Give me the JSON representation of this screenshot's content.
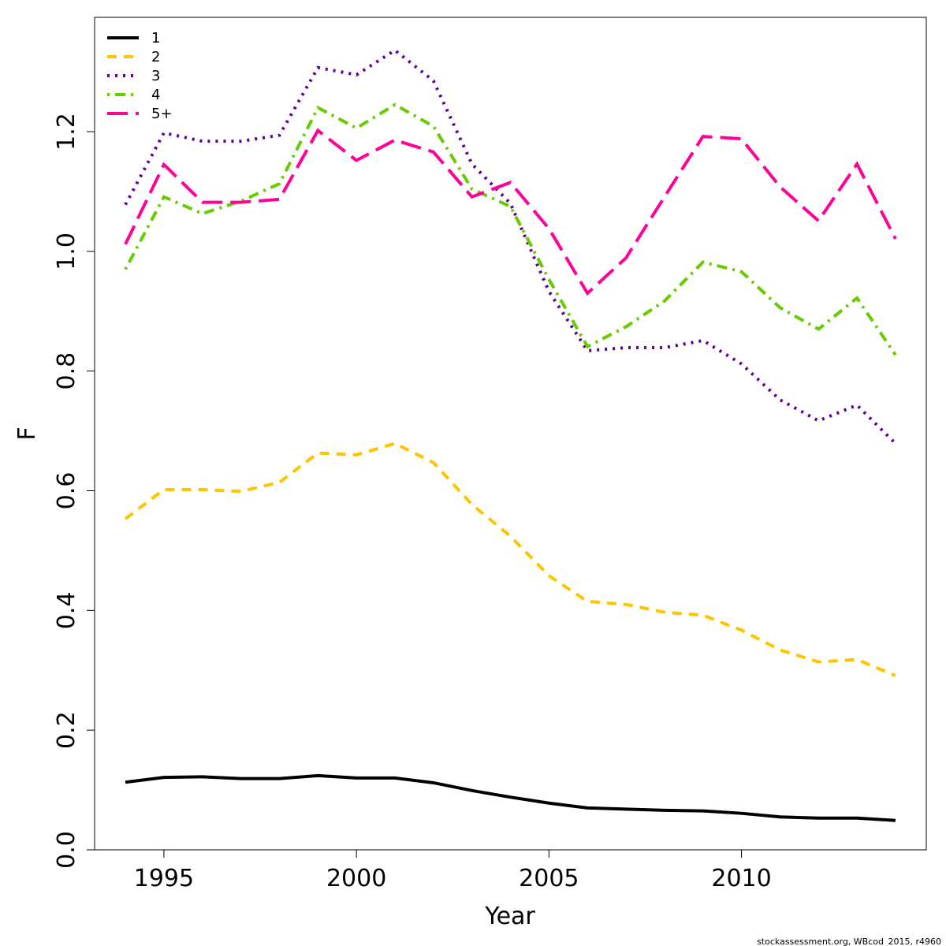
{
  "chart_data": {
    "type": "line",
    "xlabel": "Year",
    "ylabel": "F",
    "footnote": "stockassessment.org, WBcod_2015, r4960",
    "x": [
      1994,
      1995,
      1996,
      1997,
      1998,
      1999,
      2000,
      2001,
      2002,
      2003,
      2004,
      2005,
      2006,
      2007,
      2008,
      2009,
      2010,
      2011,
      2012,
      2013,
      2014
    ],
    "xlim": [
      1993.2,
      2014.8
    ],
    "xticks": [
      1995,
      2000,
      2005,
      2010
    ],
    "ylim": [
      0,
      1.391
    ],
    "yticks": [
      {
        "value": 0,
        "label": "0.0"
      },
      0.2,
      0.4,
      0.6,
      0.8,
      {
        "value": 1,
        "label": "1.0"
      },
      1.2
    ],
    "legend": "top-left",
    "series": [
      {
        "name": "1",
        "color": "#000000",
        "dash": "solid",
        "values": [
          0.113,
          0.121,
          0.122,
          0.119,
          0.119,
          0.124,
          0.12,
          0.12,
          0.112,
          0.099,
          0.088,
          0.078,
          0.07,
          0.068,
          0.066,
          0.065,
          0.061,
          0.055,
          0.053,
          0.053,
          0.049
        ]
      },
      {
        "name": "2",
        "color": "#ffc400",
        "dash": "dashed",
        "values": [
          0.553,
          0.602,
          0.602,
          0.599,
          0.614,
          0.663,
          0.66,
          0.679,
          0.647,
          0.577,
          0.524,
          0.458,
          0.415,
          0.41,
          0.397,
          0.392,
          0.367,
          0.334,
          0.314,
          0.318,
          0.291
        ]
      },
      {
        "name": "3",
        "color": "#5c0099",
        "dash": "dotted",
        "values": [
          1.078,
          1.198,
          1.184,
          1.184,
          1.194,
          1.307,
          1.295,
          1.336,
          1.285,
          1.146,
          1.08,
          0.933,
          0.834,
          0.839,
          0.839,
          0.851,
          0.812,
          0.752,
          0.717,
          0.743,
          0.679
        ]
      },
      {
        "name": "4",
        "color": "#66cc00",
        "dash": "dotdash",
        "values": [
          0.97,
          1.091,
          1.063,
          1.084,
          1.113,
          1.24,
          1.206,
          1.245,
          1.209,
          1.104,
          1.075,
          0.953,
          0.841,
          0.874,
          0.917,
          0.982,
          0.966,
          0.906,
          0.87,
          0.922,
          0.827
        ]
      },
      {
        "name": "5+",
        "color": "#ff0099",
        "dash": "longdash",
        "values": [
          1.012,
          1.145,
          1.082,
          1.082,
          1.087,
          1.202,
          1.152,
          1.186,
          1.166,
          1.091,
          1.115,
          1.038,
          0.93,
          0.989,
          1.091,
          1.192,
          1.188,
          1.108,
          1.051,
          1.146,
          1.021
        ]
      }
    ]
  }
}
